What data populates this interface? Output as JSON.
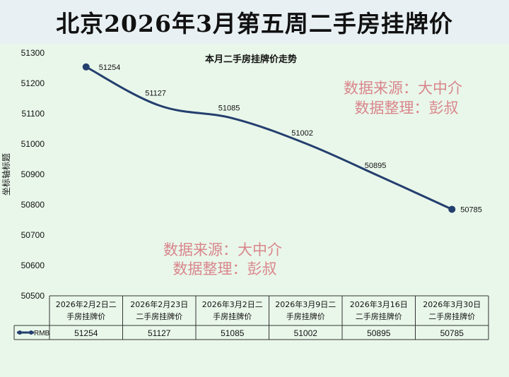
{
  "page_title": "北京2026年3月第五周二手房挂牌价",
  "watermarks": [
    {
      "line1": "数据来源：大中介",
      "line2": "数据整理：彭叔"
    },
    {
      "line1": "数据来源：大中介",
      "line2": "数据整理：彭叔"
    }
  ],
  "colors": {
    "line": "#243f6e",
    "banner_bg": "#e8f0f3",
    "plot_bg": "#e9f7ea",
    "watermark": "#d9868c"
  },
  "chart_data": {
    "type": "line",
    "title": "本月二手房挂牌价走势",
    "ylabel": "坐标轴标题",
    "ylim": [
      50500,
      51300
    ],
    "yticks": [
      51300,
      51200,
      51100,
      51000,
      50900,
      50800,
      50700,
      50600,
      50500
    ],
    "grid": false,
    "categories": [
      [
        "2026年2月2日二",
        "手房挂牌价"
      ],
      [
        "2026年2月23日",
        "二手房挂牌价"
      ],
      [
        "2026年3月2日二",
        "手房挂牌价"
      ],
      [
        "2026年3月9日二",
        "手房挂牌价"
      ],
      [
        "2026年3月16日",
        "二手房挂牌价"
      ],
      [
        "2026年3月30日",
        "二手房挂牌价"
      ]
    ],
    "series": [
      {
        "name": "RMB",
        "values": [
          51254,
          51127,
          51085,
          51002,
          50895,
          50785
        ]
      }
    ],
    "data_table": true
  }
}
